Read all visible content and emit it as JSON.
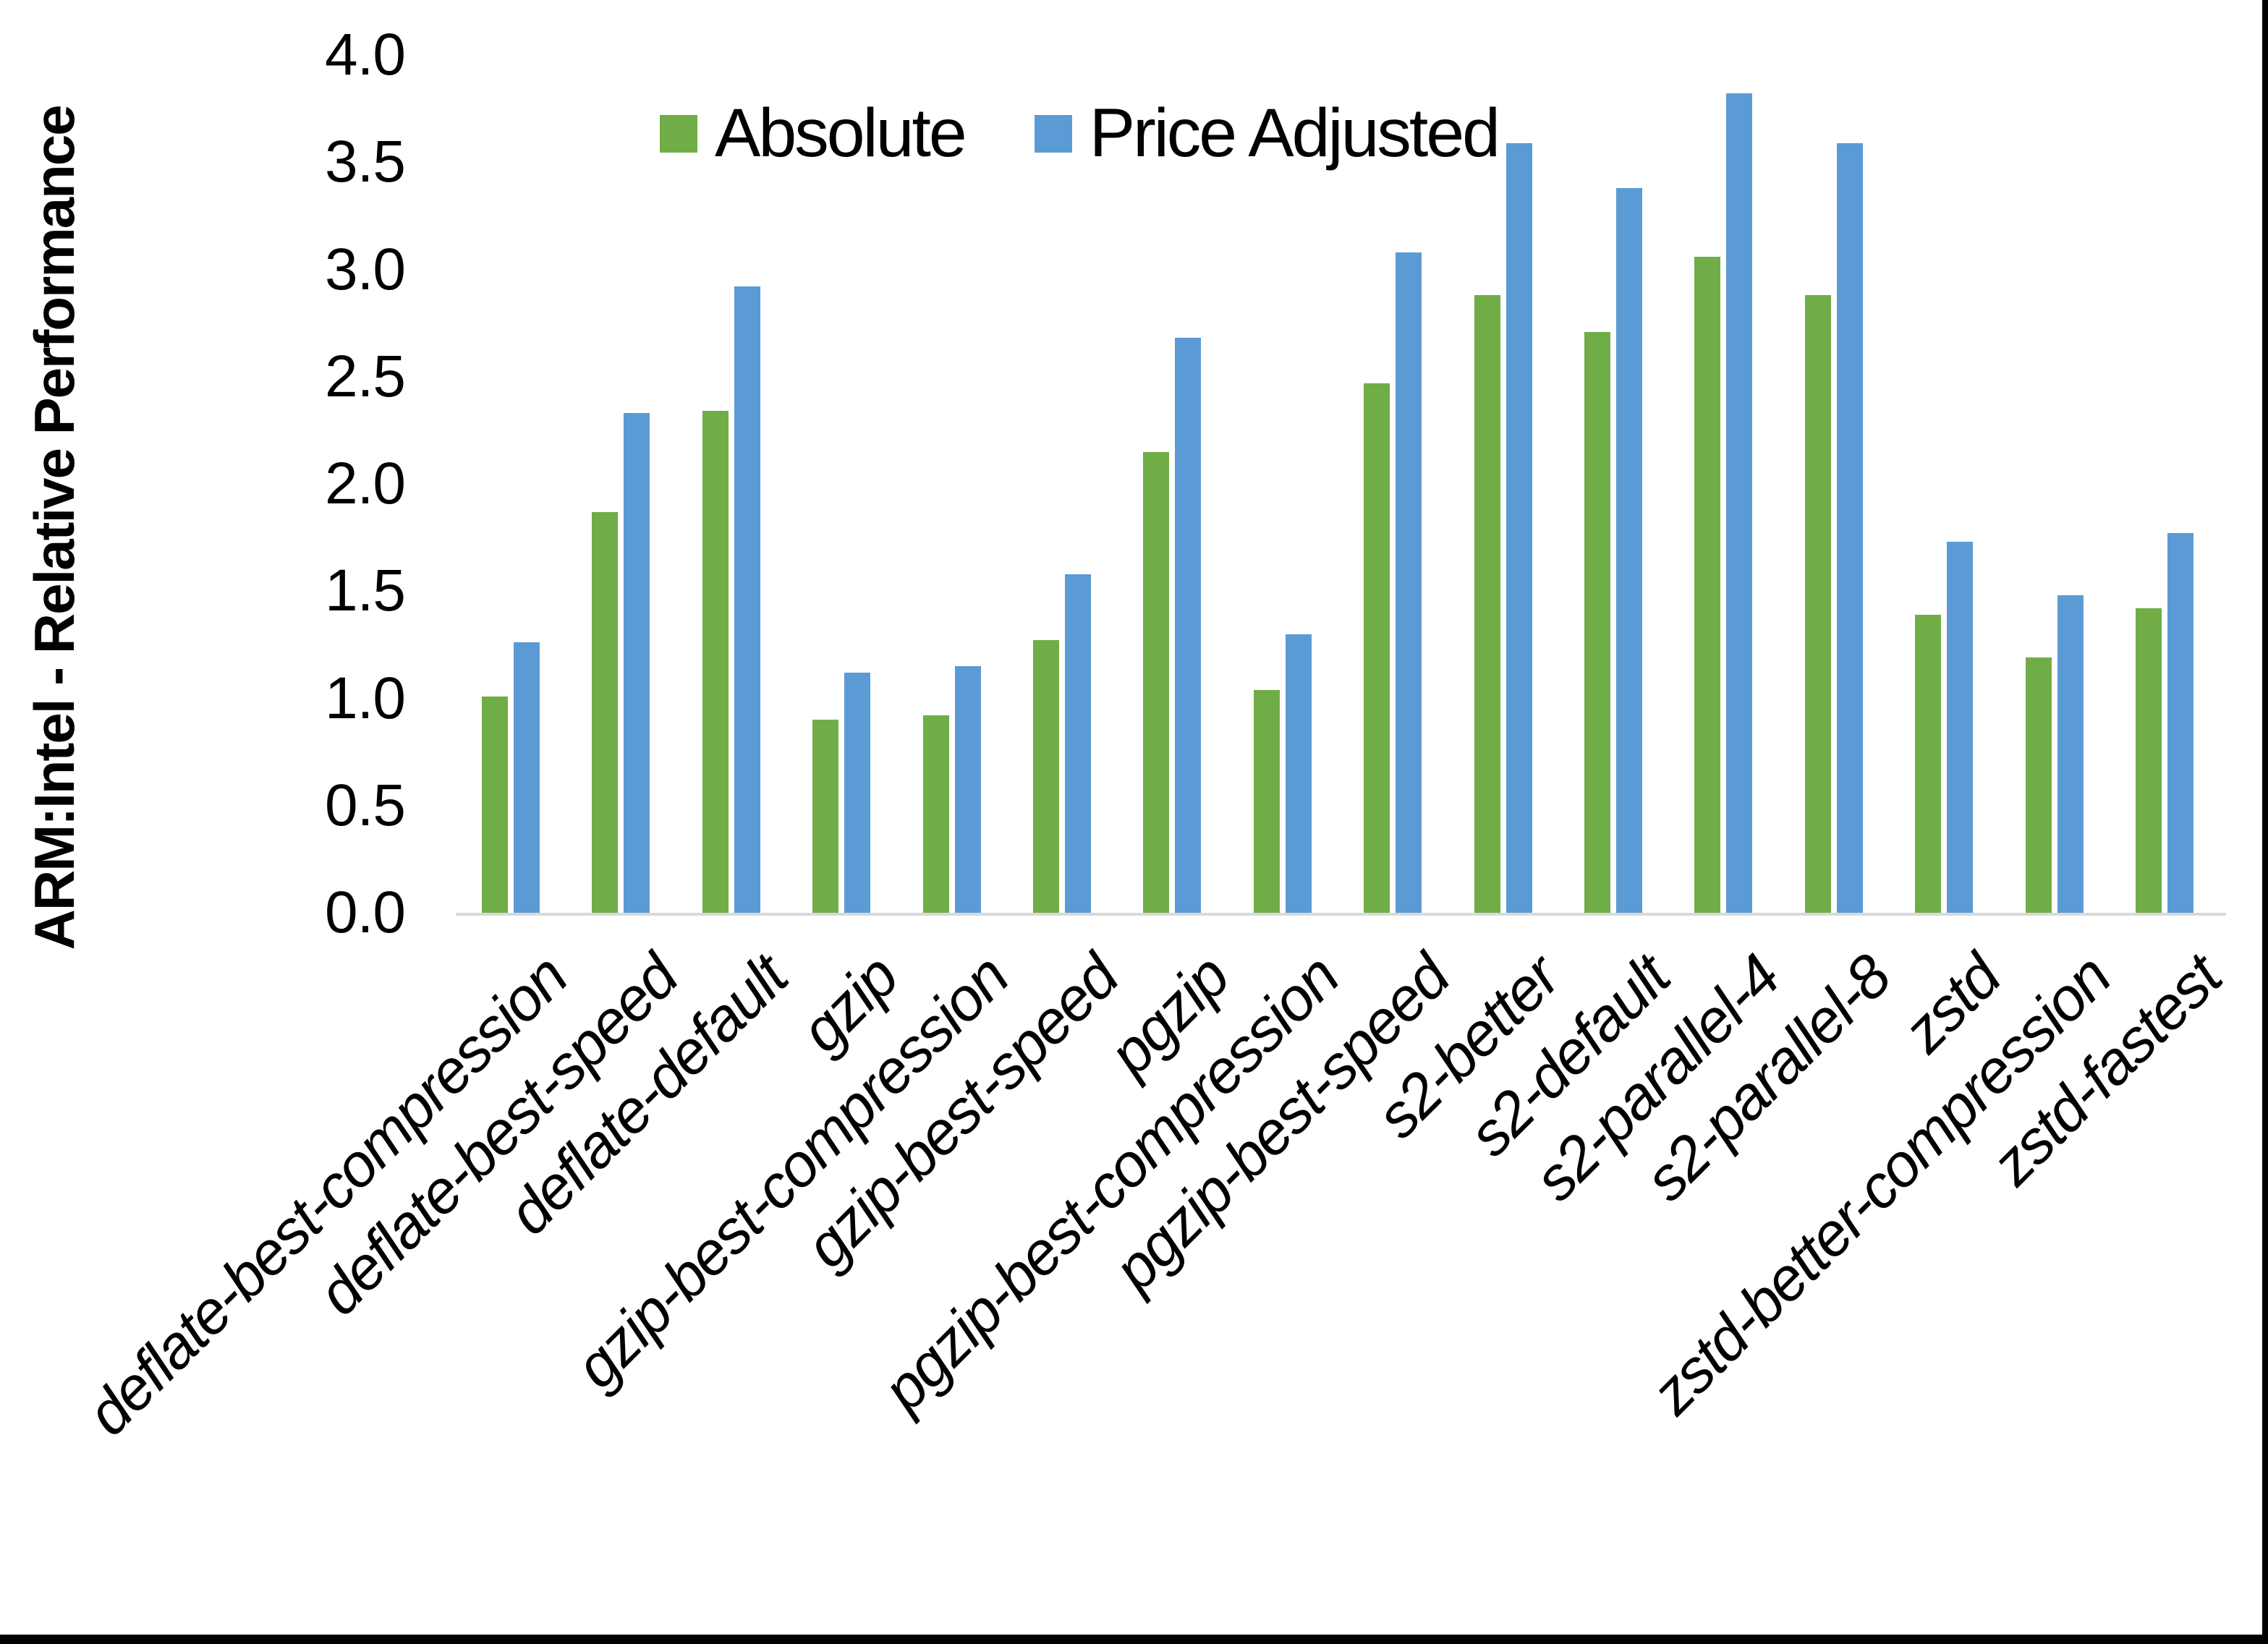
{
  "chart_data": {
    "type": "bar",
    "title": "",
    "xlabel": "",
    "ylabel": "ARM:Intel - Relative Performance",
    "ylim": [
      0.0,
      4.0
    ],
    "ytick_step": 0.5,
    "ytick_labels": [
      "0.0",
      "0.5",
      "1.0",
      "1.5",
      "2.0",
      "2.5",
      "3.0",
      "3.5",
      "4.0"
    ],
    "grid": false,
    "legend_position": "top-center-inside",
    "categories": [
      "deflate-best-compression",
      "deflate-best-speed",
      "deflate-default",
      "gzip",
      "gzip-best-compression",
      "gzip-best-speed",
      "pgzip",
      "pgzip-best-compression",
      "pgzip-best-speed",
      "s2-better",
      "s2-default",
      "s2-parallel-4",
      "s2-parallel-8",
      "zstd",
      "zstd-better-compression",
      "zstd-fastest"
    ],
    "series": [
      {
        "name": "Absolute",
        "color": "#70AD47",
        "values": [
          1.01,
          1.87,
          2.34,
          0.9,
          0.92,
          1.27,
          2.15,
          1.04,
          2.47,
          2.88,
          2.71,
          3.06,
          2.88,
          1.39,
          1.19,
          1.42
        ]
      },
      {
        "name": "Price Adjusted",
        "color": "#5B9BD5",
        "values": [
          1.26,
          2.33,
          2.92,
          1.12,
          1.15,
          1.58,
          2.68,
          1.3,
          3.08,
          3.59,
          3.38,
          3.82,
          3.59,
          1.73,
          1.48,
          1.77
        ]
      }
    ]
  },
  "colors": {
    "frame_border": "#000000",
    "axis_baseline": "#D9D9D9",
    "text": "#000000",
    "background": "#FFFFFF"
  }
}
